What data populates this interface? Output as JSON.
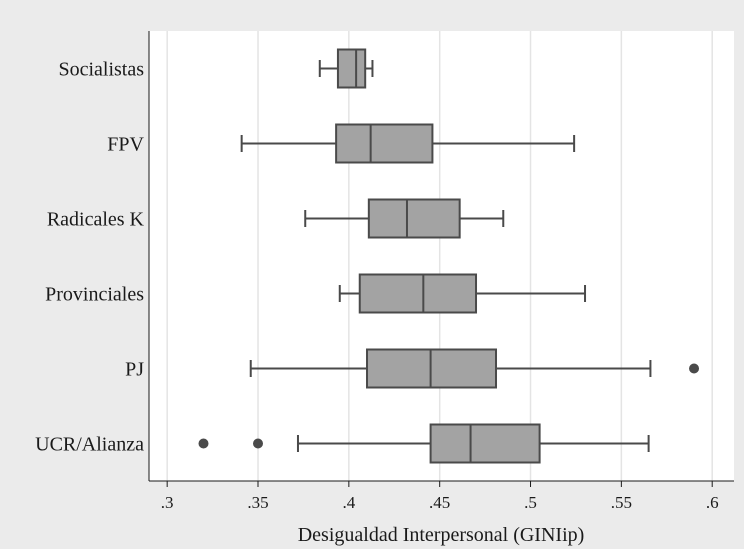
{
  "chart_data": {
    "type": "boxplot",
    "title": "",
    "xlabel": "Desigualdad Interpersonal (GINIip)",
    "ylabel": "",
    "xlim": [
      0.29,
      0.612
    ],
    "x_ticks": [
      0.3,
      0.35,
      0.4,
      0.45,
      0.5,
      0.55,
      0.6
    ],
    "x_tick_labels": [
      ".3",
      ".35",
      ".4",
      ".45",
      ".5",
      ".55",
      ".6"
    ],
    "grid": "vertical",
    "box_color": "#a3a3a3",
    "line_color": "#4a4a4a",
    "categories": [
      "Socialistas",
      "FPV",
      "Radicales K",
      "Provinciales",
      "PJ",
      "UCR/Alianza"
    ],
    "boxes": [
      {
        "category": "Socialistas",
        "whisker_low": 0.384,
        "q1": 0.394,
        "median": 0.404,
        "q3": 0.409,
        "whisker_high": 0.413,
        "outliers": []
      },
      {
        "category": "FPV",
        "whisker_low": 0.341,
        "q1": 0.393,
        "median": 0.412,
        "q3": 0.446,
        "whisker_high": 0.524,
        "outliers": []
      },
      {
        "category": "Radicales K",
        "whisker_low": 0.376,
        "q1": 0.411,
        "median": 0.432,
        "q3": 0.461,
        "whisker_high": 0.485,
        "outliers": []
      },
      {
        "category": "Provinciales",
        "whisker_low": 0.395,
        "q1": 0.406,
        "median": 0.441,
        "q3": 0.47,
        "whisker_high": 0.53,
        "outliers": []
      },
      {
        "category": "PJ",
        "whisker_low": 0.346,
        "q1": 0.41,
        "median": 0.445,
        "q3": 0.481,
        "whisker_high": 0.566,
        "outliers": [
          0.59
        ]
      },
      {
        "category": "UCR/Alianza",
        "whisker_low": 0.372,
        "q1": 0.445,
        "median": 0.467,
        "q3": 0.505,
        "whisker_high": 0.565,
        "outliers": [
          0.32,
          0.35
        ]
      }
    ]
  }
}
